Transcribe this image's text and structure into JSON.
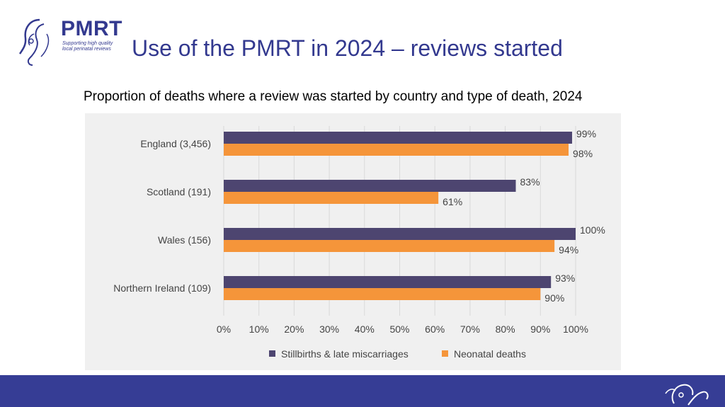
{
  "header": {
    "logo_text": "PMRT",
    "logo_tagline_1": "Supporting high quality",
    "logo_tagline_2": "local perinatal reviews",
    "title": "Use of the PMRT in 2024 – reviews started"
  },
  "colors": {
    "brand": "#363d95",
    "stillbirths": "#4d4570",
    "neonatal": "#f5953a",
    "panel": "#f0f0f0"
  },
  "chart_data": {
    "type": "bar",
    "orientation": "horizontal",
    "title": "Proportion of deaths where a review was started by country and type of death, 2024",
    "categories": [
      "England (3,456)",
      "Scotland (191)",
      "Wales (156)",
      "Northern Ireland (109)"
    ],
    "series": [
      {
        "name": "Stillbirths & late miscarriages",
        "values": [
          99,
          83,
          100,
          93
        ],
        "labels": [
          "99%",
          "83%",
          "100%",
          "93%"
        ]
      },
      {
        "name": "Neonatal deaths",
        "values": [
          98,
          61,
          94,
          90
        ],
        "labels": [
          "98%",
          "61%",
          "94%",
          "90%"
        ]
      }
    ],
    "xlim": [
      0,
      100
    ],
    "xticks": [
      "0%",
      "10%",
      "20%",
      "30%",
      "40%",
      "50%",
      "60%",
      "70%",
      "80%",
      "90%",
      "100%"
    ],
    "grid": true,
    "legend_position": "bottom"
  }
}
